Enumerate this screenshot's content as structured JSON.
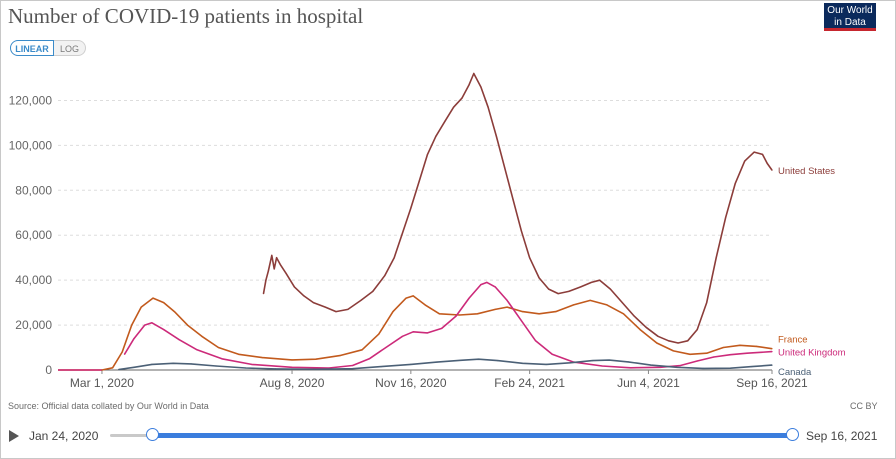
{
  "page": {
    "title": "Number of COVID-19 patients in hospital",
    "logo_line1": "Our World",
    "logo_line2": "in Data",
    "toggle_linear": "LINEAR",
    "toggle_log": "LOG",
    "source": "Source: Official data collated by Our World in Data",
    "license": "CC BY",
    "timeline_start": "Jan 24, 2020",
    "timeline_end": "Sep 16, 2021"
  },
  "colors": {
    "united_states": "#8c3d3a",
    "france": "#c25a1d",
    "united_kingdom": "#cc2a7a",
    "canada": "#4b6076",
    "grid": "#dddddd",
    "accent": "#3b7ddd"
  },
  "chart_data": {
    "type": "line",
    "title": "Number of COVID-19 patients in hospital",
    "xlabel": "",
    "ylabel": "",
    "xlim": [
      "2020-01-24",
      "2021-09-16"
    ],
    "ylim": [
      0,
      130000
    ],
    "x_ticks": [
      {
        "label": "Mar 1, 2020",
        "date": "2020-03-01"
      },
      {
        "label": "Aug 8, 2020",
        "date": "2020-08-08"
      },
      {
        "label": "Nov 16, 2020",
        "date": "2020-11-16"
      },
      {
        "label": "Feb 24, 2021",
        "date": "2021-02-24"
      },
      {
        "label": "Jun 4, 2021",
        "date": "2021-06-04"
      },
      {
        "label": "Sep 16, 2021",
        "date": "2021-09-16"
      }
    ],
    "y_ticks": [
      {
        "label": "0",
        "value": 0
      },
      {
        "label": "20,000",
        "value": 20000
      },
      {
        "label": "40,000",
        "value": 40000
      },
      {
        "label": "60,000",
        "value": 60000
      },
      {
        "label": "80,000",
        "value": 80000
      },
      {
        "label": "100,000",
        "value": 100000
      },
      {
        "label": "120,000",
        "value": 120000
      }
    ],
    "grid": true,
    "legend": "inline-right",
    "series": [
      {
        "name": "United States",
        "points": [
          [
            "2020-07-15",
            34000
          ],
          [
            "2020-07-17",
            40000
          ],
          [
            "2020-07-19",
            44000
          ],
          [
            "2020-07-22",
            51000
          ],
          [
            "2020-07-24",
            45000
          ],
          [
            "2020-07-26",
            50000
          ],
          [
            "2020-07-29",
            47000
          ],
          [
            "2020-08-03",
            43000
          ],
          [
            "2020-08-10",
            37000
          ],
          [
            "2020-08-18",
            33000
          ],
          [
            "2020-08-26",
            30000
          ],
          [
            "2020-09-05",
            28000
          ],
          [
            "2020-09-14",
            26000
          ],
          [
            "2020-09-24",
            27000
          ],
          [
            "2020-10-05",
            31000
          ],
          [
            "2020-10-15",
            35000
          ],
          [
            "2020-10-25",
            42000
          ],
          [
            "2020-11-02",
            50000
          ],
          [
            "2020-11-09",
            61000
          ],
          [
            "2020-11-16",
            72000
          ],
          [
            "2020-11-23",
            84000
          ],
          [
            "2020-11-30",
            96000
          ],
          [
            "2020-12-07",
            104000
          ],
          [
            "2020-12-15",
            111000
          ],
          [
            "2020-12-22",
            117000
          ],
          [
            "2020-12-29",
            121000
          ],
          [
            "2021-01-04",
            127000
          ],
          [
            "2021-01-08",
            132000
          ],
          [
            "2021-01-14",
            126000
          ],
          [
            "2021-01-20",
            117000
          ],
          [
            "2021-01-27",
            104000
          ],
          [
            "2021-02-03",
            90000
          ],
          [
            "2021-02-10",
            76000
          ],
          [
            "2021-02-17",
            62000
          ],
          [
            "2021-02-24",
            50000
          ],
          [
            "2021-03-04",
            41000
          ],
          [
            "2021-03-12",
            36000
          ],
          [
            "2021-03-20",
            34000
          ],
          [
            "2021-03-29",
            35000
          ],
          [
            "2021-04-08",
            37000
          ],
          [
            "2021-04-17",
            39000
          ],
          [
            "2021-04-24",
            40000
          ],
          [
            "2021-05-03",
            36000
          ],
          [
            "2021-05-13",
            30000
          ],
          [
            "2021-05-23",
            24000
          ],
          [
            "2021-06-02",
            19000
          ],
          [
            "2021-06-12",
            15000
          ],
          [
            "2021-06-21",
            13000
          ],
          [
            "2021-06-29",
            12000
          ],
          [
            "2021-07-07",
            13000
          ],
          [
            "2021-07-15",
            18000
          ],
          [
            "2021-07-23",
            30000
          ],
          [
            "2021-07-31",
            50000
          ],
          [
            "2021-08-08",
            68000
          ],
          [
            "2021-08-16",
            83000
          ],
          [
            "2021-08-24",
            93000
          ],
          [
            "2021-09-01",
            97000
          ],
          [
            "2021-09-08",
            96000
          ],
          [
            "2021-09-12",
            92000
          ],
          [
            "2021-09-16",
            89000
          ]
        ]
      },
      {
        "name": "France",
        "points": [
          [
            "2020-03-01",
            0
          ],
          [
            "2020-03-10",
            1000
          ],
          [
            "2020-03-18",
            8000
          ],
          [
            "2020-03-26",
            20000
          ],
          [
            "2020-04-03",
            28000
          ],
          [
            "2020-04-13",
            32000
          ],
          [
            "2020-04-22",
            30000
          ],
          [
            "2020-05-01",
            26000
          ],
          [
            "2020-05-12",
            20000
          ],
          [
            "2020-05-24",
            15000
          ],
          [
            "2020-06-07",
            10000
          ],
          [
            "2020-06-24",
            7000
          ],
          [
            "2020-07-14",
            5500
          ],
          [
            "2020-08-08",
            4500
          ],
          [
            "2020-08-28",
            4800
          ],
          [
            "2020-09-18",
            6500
          ],
          [
            "2020-10-06",
            9000
          ],
          [
            "2020-10-20",
            16000
          ],
          [
            "2020-11-01",
            26000
          ],
          [
            "2020-11-12",
            32000
          ],
          [
            "2020-11-18",
            33000
          ],
          [
            "2020-11-28",
            29000
          ],
          [
            "2020-12-10",
            25000
          ],
          [
            "2020-12-27",
            24500
          ],
          [
            "2021-01-11",
            25000
          ],
          [
            "2021-01-26",
            27000
          ],
          [
            "2021-02-05",
            28000
          ],
          [
            "2021-02-18",
            26000
          ],
          [
            "2021-03-04",
            25000
          ],
          [
            "2021-03-18",
            26000
          ],
          [
            "2021-04-02",
            29000
          ],
          [
            "2021-04-16",
            31000
          ],
          [
            "2021-04-30",
            29000
          ],
          [
            "2021-05-14",
            25000
          ],
          [
            "2021-05-28",
            18000
          ],
          [
            "2021-06-11",
            12000
          ],
          [
            "2021-06-25",
            8500
          ],
          [
            "2021-07-09",
            7000
          ],
          [
            "2021-07-23",
            7500
          ],
          [
            "2021-08-06",
            10000
          ],
          [
            "2021-08-20",
            11000
          ],
          [
            "2021-09-03",
            10500
          ],
          [
            "2021-09-16",
            9500
          ]
        ]
      },
      {
        "name": "United Kingdom",
        "points": [
          [
            "2020-03-20",
            7000
          ],
          [
            "2020-03-28",
            14000
          ],
          [
            "2020-04-06",
            20000
          ],
          [
            "2020-04-12",
            21000
          ],
          [
            "2020-04-22",
            18000
          ],
          [
            "2020-05-05",
            13500
          ],
          [
            "2020-05-20",
            9000
          ],
          [
            "2020-06-10",
            5000
          ],
          [
            "2020-07-05",
            2500
          ],
          [
            "2020-08-08",
            1200
          ],
          [
            "2020-09-08",
            900
          ],
          [
            "2020-09-28",
            2000
          ],
          [
            "2020-10-12",
            5000
          ],
          [
            "2020-10-26",
            10000
          ],
          [
            "2020-11-09",
            15000
          ],
          [
            "2020-11-18",
            17000
          ],
          [
            "2020-11-30",
            16500
          ],
          [
            "2020-12-12",
            18500
          ],
          [
            "2020-12-24",
            24000
          ],
          [
            "2021-01-04",
            32000
          ],
          [
            "2021-01-14",
            38000
          ],
          [
            "2021-01-19",
            39000
          ],
          [
            "2021-01-26",
            37000
          ],
          [
            "2021-02-05",
            31000
          ],
          [
            "2021-02-17",
            22000
          ],
          [
            "2021-03-01",
            13000
          ],
          [
            "2021-03-15",
            7000
          ],
          [
            "2021-04-02",
            3500
          ],
          [
            "2021-04-26",
            1800
          ],
          [
            "2021-05-20",
            1000
          ],
          [
            "2021-06-14",
            1200
          ],
          [
            "2021-07-01",
            2000
          ],
          [
            "2021-07-15",
            4000
          ],
          [
            "2021-07-29",
            5800
          ],
          [
            "2021-08-12",
            6800
          ],
          [
            "2021-08-26",
            7500
          ],
          [
            "2021-09-16",
            8200
          ]
        ]
      },
      {
        "name": "Canada",
        "points": [
          [
            "2020-03-15",
            200
          ],
          [
            "2020-03-28",
            1200
          ],
          [
            "2020-04-12",
            2500
          ],
          [
            "2020-04-30",
            3000
          ],
          [
            "2020-05-15",
            2700
          ],
          [
            "2020-06-05",
            1800
          ],
          [
            "2020-06-30",
            900
          ],
          [
            "2020-07-25",
            500
          ],
          [
            "2020-08-28",
            300
          ],
          [
            "2020-09-28",
            600
          ],
          [
            "2020-10-22",
            1500
          ],
          [
            "2020-11-16",
            2500
          ],
          [
            "2020-12-08",
            3500
          ],
          [
            "2020-12-28",
            4300
          ],
          [
            "2021-01-12",
            4800
          ],
          [
            "2021-01-28",
            4200
          ],
          [
            "2021-02-18",
            3000
          ],
          [
            "2021-03-10",
            2500
          ],
          [
            "2021-03-30",
            3200
          ],
          [
            "2021-04-18",
            4200
          ],
          [
            "2021-05-02",
            4400
          ],
          [
            "2021-05-18",
            3600
          ],
          [
            "2021-06-06",
            2200
          ],
          [
            "2021-06-28",
            1200
          ],
          [
            "2021-07-20",
            700
          ],
          [
            "2021-08-12",
            800
          ],
          [
            "2021-08-30",
            1500
          ],
          [
            "2021-09-16",
            2200
          ]
        ]
      }
    ]
  }
}
